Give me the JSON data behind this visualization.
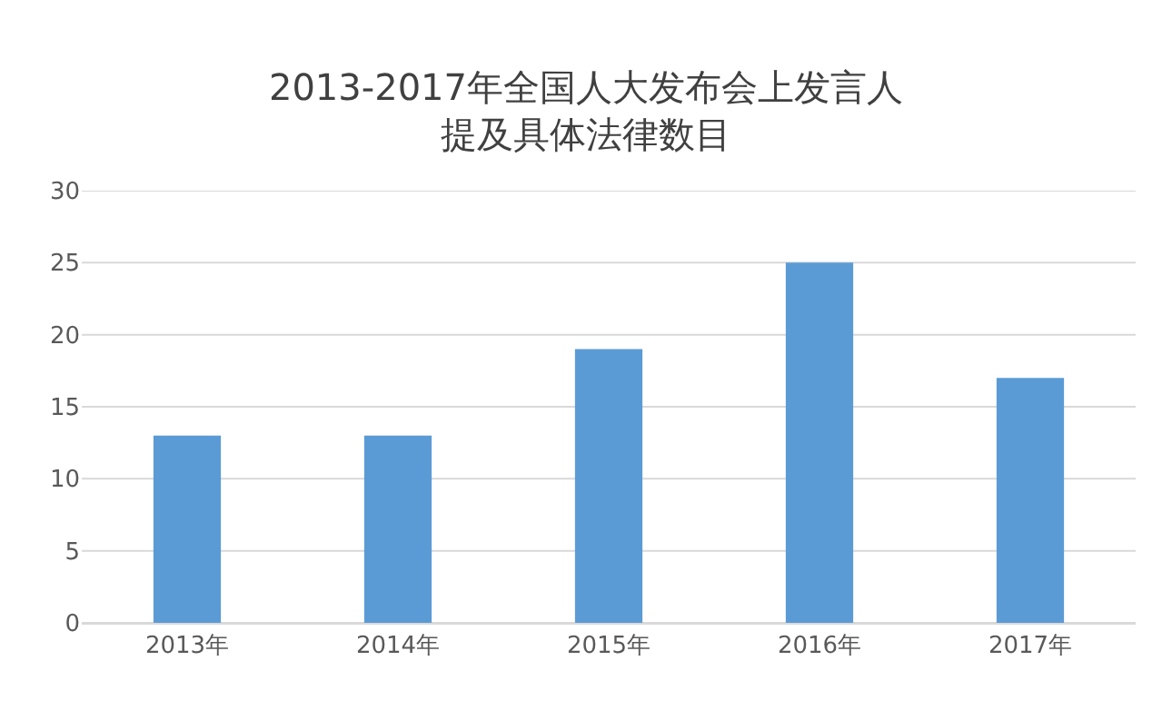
{
  "chart_data": {
    "type": "bar",
    "title": "2013-2017年全国人大发布会上发言人提及具体法律数目",
    "categories": [
      "2013年",
      "2014年",
      "2015年",
      "2016年",
      "2017年"
    ],
    "values": [
      13,
      13,
      19,
      25,
      17
    ],
    "color": "#5b9bd5",
    "ylim": [
      0,
      30
    ],
    "yticks": [
      0,
      5,
      10,
      15,
      20,
      25,
      30
    ],
    "grid": "y"
  }
}
